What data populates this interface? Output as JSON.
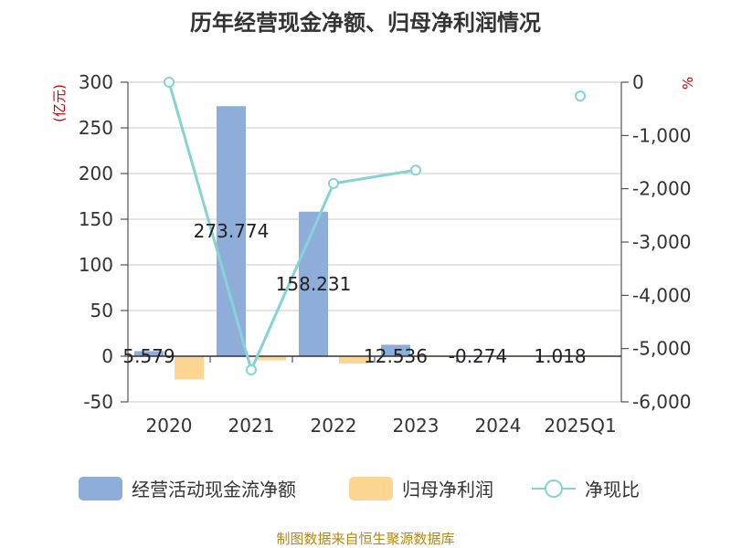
{
  "chart_data": {
    "type": "bar",
    "title": "历年经营现金净额、归母净利润情况",
    "categories": [
      "2020",
      "2021",
      "2022",
      "2023",
      "2024",
      "2025Q1"
    ],
    "left_axis": {
      "unit": "(亿元)",
      "ylim": [
        -50,
        300
      ],
      "ticks": [
        -50,
        0,
        50,
        100,
        150,
        200,
        250,
        300
      ],
      "tick_labels": [
        "-50",
        "0",
        "50",
        "100",
        "150",
        "200",
        "250",
        "300"
      ]
    },
    "right_axis": {
      "unit": "%",
      "ylim": [
        -6000,
        0
      ],
      "ticks": [
        0,
        -1000,
        -2000,
        -3000,
        -4000,
        -5000,
        -6000
      ],
      "tick_labels": [
        "0",
        "-1,000",
        "-2,000",
        "-3,000",
        "-4,000",
        "-5,000",
        "-6,000"
      ]
    },
    "series": [
      {
        "name": "经营活动现金流净额",
        "type": "bar",
        "axis": "left",
        "color": "#8eadd9",
        "values": [
          5.579,
          273.774,
          158.231,
          12.536,
          -0.274,
          1.018
        ],
        "labels": [
          "5.579",
          "273.774",
          "158.231",
          "12.536",
          "-0.274",
          "1.018"
        ]
      },
      {
        "name": "归母净利润",
        "type": "bar",
        "axis": "left",
        "color": "#fdd694",
        "values": [
          -25.5,
          -4.5,
          -8.0,
          -0.8,
          -0.5,
          0
        ]
      },
      {
        "name": "净现比",
        "type": "line",
        "axis": "right",
        "color": "#86d3d6",
        "values": [
          0,
          -5400,
          -1900,
          -1650,
          null,
          -260
        ]
      }
    ],
    "grid": true,
    "legend": "bottom"
  },
  "source": "制图数据来自恒生聚源数据库"
}
